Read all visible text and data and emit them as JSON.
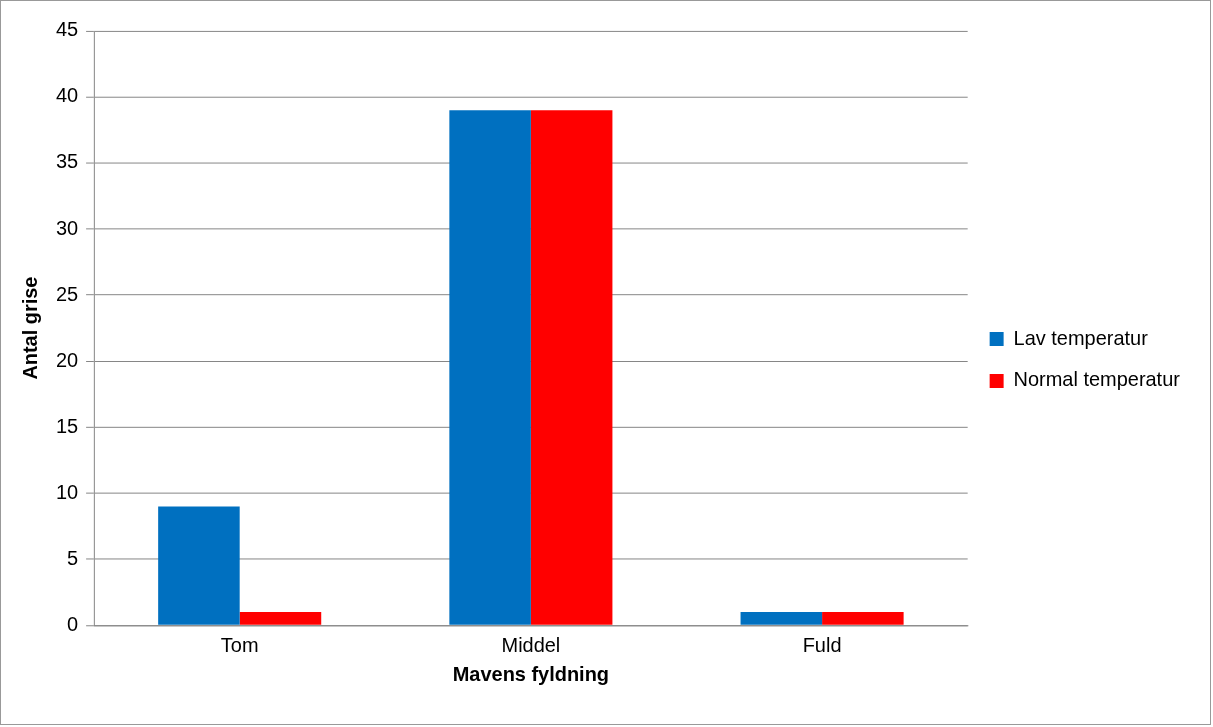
{
  "chart_data": {
    "type": "bar",
    "xlabel": "Mavens fyldning",
    "ylabel": "Antal grise",
    "categories": [
      "Tom",
      "Middel",
      "Fuld"
    ],
    "series": [
      {
        "name": "Lav temperatur",
        "color": "#0070c0",
        "values": [
          9,
          39,
          1
        ]
      },
      {
        "name": "Normal temperatur",
        "color": "#ff0000",
        "values": [
          1,
          39,
          1
        ]
      }
    ],
    "ylim": [
      0,
      45
    ],
    "yticks": [
      0,
      5,
      10,
      15,
      20,
      25,
      30,
      35,
      40,
      45
    ],
    "grid": "y",
    "legend": "right"
  }
}
